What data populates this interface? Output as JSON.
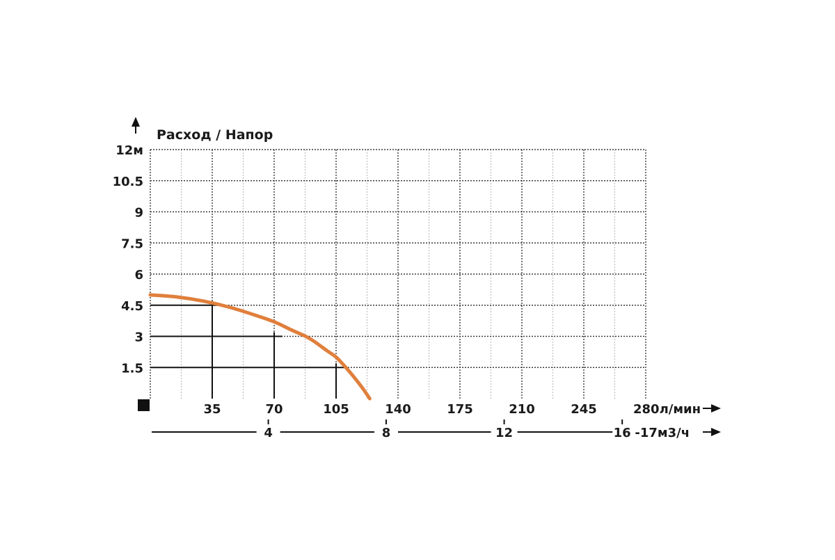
{
  "chart_data": {
    "type": "line",
    "title": "Расход / Напор",
    "ylabel_unit": "м",
    "x_unit": "л/мин",
    "x2_unit": "м3/ч",
    "xlim": [
      0,
      280
    ],
    "ylim": [
      0,
      12
    ],
    "grid": true,
    "y_ticks": [
      {
        "value": 1.5,
        "label": "1.5"
      },
      {
        "value": 3,
        "label": "3"
      },
      {
        "value": 4.5,
        "label": "4.5"
      },
      {
        "value": 6,
        "label": "6"
      },
      {
        "value": 7.5,
        "label": "7.5"
      },
      {
        "value": 9,
        "label": "9"
      },
      {
        "value": 10.5,
        "label": "10.5"
      },
      {
        "value": 12,
        "label": "12м"
      }
    ],
    "x_ticks": [
      {
        "value": 35,
        "label": "35"
      },
      {
        "value": 70,
        "label": "70"
      },
      {
        "value": 105,
        "label": "105"
      },
      {
        "value": 140,
        "label": "140"
      },
      {
        "value": 175,
        "label": "175"
      },
      {
        "value": 210,
        "label": "210"
      },
      {
        "value": 245,
        "label": "245"
      },
      {
        "value": 280,
        "label": "280л/мин"
      }
    ],
    "x2_ticks": [
      {
        "value": 66.7,
        "label": "4"
      },
      {
        "value": 133.3,
        "label": "8"
      },
      {
        "value": 200,
        "label": "12"
      },
      {
        "value": 266.7,
        "label": "16"
      },
      {
        "value": 283.3,
        "label": "-17м3/ч"
      }
    ],
    "series": [
      {
        "color": "#e07f3c",
        "x": [
          0,
          15,
          30,
          45,
          60,
          70,
          80,
          90,
          100,
          105,
          110,
          115,
          120,
          124
        ],
        "y": [
          5.0,
          4.9,
          4.7,
          4.4,
          4.0,
          3.7,
          3.3,
          2.9,
          2.3,
          2.0,
          1.55,
          1.05,
          0.5,
          0.0
        ]
      }
    ],
    "operating_points": [
      {
        "x": 35,
        "y": 4.5
      },
      {
        "x": 70,
        "y": 3
      },
      {
        "x": 105,
        "y": 1.5
      }
    ]
  }
}
